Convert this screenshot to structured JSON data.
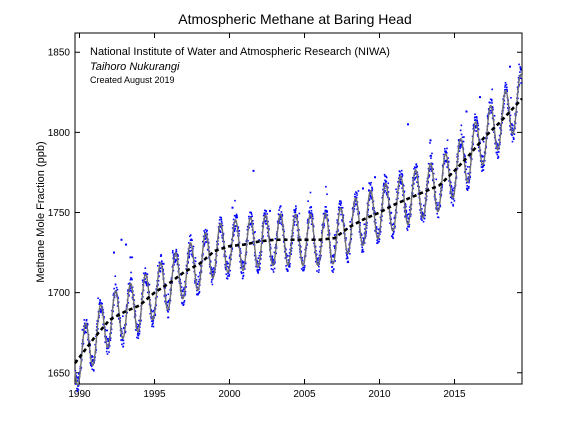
{
  "chart_data": {
    "type": "scatter",
    "title": "Atmospheric Methane at Baring Head",
    "xlabel": "",
    "ylabel": "Methane Mole Fraction (ppb)",
    "xlim": [
      1989.7,
      2019.5
    ],
    "ylim": [
      1643,
      1862
    ],
    "x_ticks": [
      1990,
      1995,
      2000,
      2005,
      2010,
      2015
    ],
    "y_ticks": [
      1650,
      1700,
      1750,
      1800,
      1850
    ],
    "grid": false,
    "legend": "none",
    "annotations": [
      "National Institute of Water and Atmospheric Research (NIWA)",
      "Taihoro Nukurangi",
      "Created August 2019"
    ],
    "colors": {
      "observations": "#0000ff",
      "seasonal_fit": "#707070",
      "trend": "#000000"
    },
    "series": [
      {
        "kind": "observations",
        "seasonal_amplitude": 16,
        "trend_points": [
          {
            "x": 1989.7,
            "y": 1656
          },
          {
            "x": 1991,
            "y": 1672
          },
          {
            "x": 1992,
            "y": 1683
          },
          {
            "x": 1993,
            "y": 1688
          },
          {
            "x": 1994,
            "y": 1692
          },
          {
            "x": 1995,
            "y": 1700
          },
          {
            "x": 1996,
            "y": 1706
          },
          {
            "x": 1997,
            "y": 1713
          },
          {
            "x": 1998,
            "y": 1718
          },
          {
            "x": 1999,
            "y": 1726
          },
          {
            "x": 2000,
            "y": 1729
          },
          {
            "x": 2001,
            "y": 1730
          },
          {
            "x": 2002,
            "y": 1732
          },
          {
            "x": 2003,
            "y": 1733
          },
          {
            "x": 2004,
            "y": 1733
          },
          {
            "x": 2005,
            "y": 1733
          },
          {
            "x": 2006,
            "y": 1733
          },
          {
            "x": 2007,
            "y": 1734
          },
          {
            "x": 2008,
            "y": 1741
          },
          {
            "x": 2009,
            "y": 1746
          },
          {
            "x": 2010,
            "y": 1750
          },
          {
            "x": 2011,
            "y": 1755
          },
          {
            "x": 2012,
            "y": 1759
          },
          {
            "x": 2013,
            "y": 1763
          },
          {
            "x": 2014,
            "y": 1767
          },
          {
            "x": 2015,
            "y": 1776
          },
          {
            "x": 2016,
            "y": 1786
          },
          {
            "x": 2017,
            "y": 1797
          },
          {
            "x": 2018,
            "y": 1806
          },
          {
            "x": 2019,
            "y": 1816
          },
          {
            "x": 2019.5,
            "y": 1821
          }
        ]
      },
      {
        "kind": "trend",
        "style": "dashed"
      },
      {
        "kind": "seasonal_fit",
        "style": "solid"
      }
    ],
    "outliers": [
      {
        "x": 1992.3,
        "y": 1725
      },
      {
        "x": 1992.8,
        "y": 1733
      },
      {
        "x": 1993.1,
        "y": 1730
      },
      {
        "x": 1993.4,
        "y": 1722
      },
      {
        "x": 1995.6,
        "y": 1718
      },
      {
        "x": 1997.3,
        "y": 1722
      },
      {
        "x": 2000.2,
        "y": 1753
      },
      {
        "x": 2001.6,
        "y": 1776
      },
      {
        "x": 2002.7,
        "y": 1751
      },
      {
        "x": 2006.4,
        "y": 1751
      },
      {
        "x": 2008.9,
        "y": 1765
      },
      {
        "x": 2009.7,
        "y": 1772
      },
      {
        "x": 2011.9,
        "y": 1805
      },
      {
        "x": 2013.4,
        "y": 1795
      },
      {
        "x": 2015.8,
        "y": 1813
      },
      {
        "x": 2016.7,
        "y": 1822
      },
      {
        "x": 2018.7,
        "y": 1841
      }
    ]
  }
}
